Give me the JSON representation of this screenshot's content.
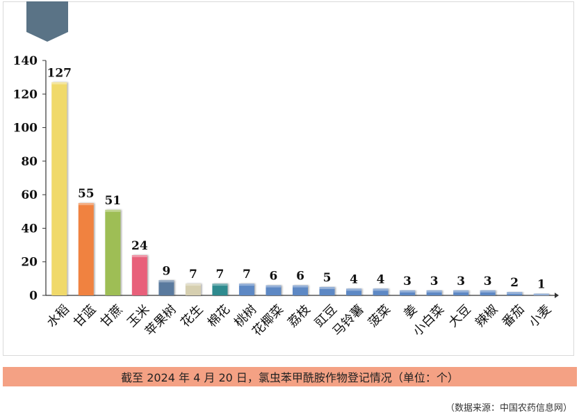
{
  "chart_data": {
    "type": "bar",
    "categories": [
      "水稻",
      "甘蓝",
      "甘蔗",
      "玉米",
      "苹果树",
      "花生",
      "棉花",
      "桃树",
      "花椰菜",
      "荔枝",
      "豇豆",
      "马铃薯",
      "菠菜",
      "姜",
      "小白菜",
      "大豆",
      "辣椒",
      "番茄",
      "小麦"
    ],
    "values": [
      127,
      55,
      51,
      24,
      9,
      7,
      7,
      7,
      6,
      6,
      5,
      4,
      4,
      3,
      3,
      3,
      3,
      2,
      1
    ],
    "ylim": [
      0,
      140
    ],
    "yticks": [
      0,
      20,
      40,
      60,
      80,
      100,
      120,
      140
    ],
    "colors": [
      "#f0d96a",
      "#f08240",
      "#9ebe54",
      "#e8607a",
      "#5a7a9e",
      "#d6cfb0",
      "#2e8a8e",
      "#5d88c4",
      "#5d88c4",
      "#5d88c4",
      "#5d88c4",
      "#5d88c4",
      "#5d88c4",
      "#5d88c4",
      "#5d88c4",
      "#5d88c4",
      "#5d88c4",
      "#5d88c4",
      "#5d88c4"
    ],
    "grid": false,
    "title": "截至 2024 年 4 月 20 日，氯虫苯甲酰胺作物登记情况（单位：个）"
  },
  "caption": "截至 2024 年 4 月 20 日，氯虫苯甲酰胺作物登记情况（单位：个）",
  "source": "（数据来源：中国农药信息网）",
  "badge_color": "#5a7386"
}
